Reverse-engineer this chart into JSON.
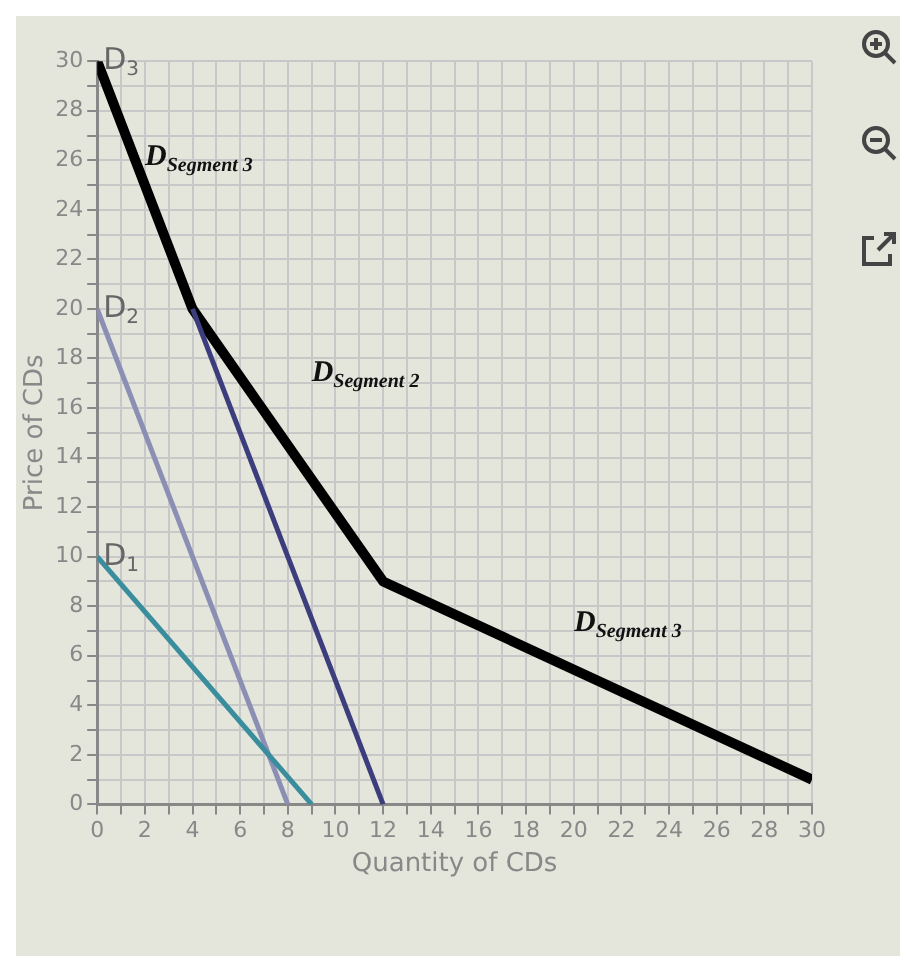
{
  "chart_data": {
    "type": "line",
    "xlabel": "Quantity of CDs",
    "ylabel": "Price of CDs",
    "xlim": [
      0,
      30
    ],
    "ylim": [
      0,
      30
    ],
    "xticks": [
      0,
      {
        "value": 1,
        "label": null
      },
      2,
      {
        "value": 3,
        "label": null
      },
      4,
      {
        "value": 5,
        "label": null
      },
      6,
      {
        "value": 7,
        "label": null
      },
      8,
      {
        "value": 9,
        "label": null
      },
      10,
      {
        "value": 11,
        "label": null
      },
      12,
      {
        "value": 13,
        "label": null
      },
      14,
      {
        "value": 15,
        "label": null
      },
      16,
      {
        "value": 17,
        "label": null
      },
      18,
      {
        "value": 19,
        "label": null
      },
      20,
      {
        "value": 21,
        "label": null
      },
      22,
      {
        "value": 23,
        "label": null
      },
      24,
      {
        "value": 25,
        "label": null
      },
      26,
      {
        "value": 27,
        "label": null
      },
      28,
      {
        "value": 29,
        "label": null
      },
      30
    ],
    "yticks": [
      0,
      {
        "value": 1,
        "label": null
      },
      2,
      {
        "value": 3,
        "label": null
      },
      4,
      {
        "value": 5,
        "label": null
      },
      6,
      {
        "value": 7,
        "label": null
      },
      8,
      {
        "value": 9,
        "label": null
      },
      10,
      {
        "value": 11,
        "label": null
      },
      12,
      {
        "value": 13,
        "label": null
      },
      14,
      {
        "value": 15,
        "label": null
      },
      16,
      {
        "value": 17,
        "label": null
      },
      18,
      {
        "value": 19,
        "label": null
      },
      20,
      {
        "value": 21,
        "label": null
      },
      22,
      {
        "value": 23,
        "label": null
      },
      24,
      {
        "value": 25,
        "label": null
      },
      26,
      {
        "value": 27,
        "label": null
      },
      28,
      {
        "value": 29,
        "label": null
      },
      30
    ],
    "grid": true,
    "legend": false,
    "marker": "none",
    "line_style": "solid",
    "series": [
      {
        "name": "D$_{1}$",
        "color": "#3a8d9c",
        "x": [
          0,
          9
        ],
        "values": [
          10,
          0
        ]
      },
      {
        "name": "D$_{2}$",
        "color": "#8c8fb4",
        "x": [
          0,
          8
        ],
        "values": [
          20,
          0
        ]
      },
      {
        "color": "#3b3d7c",
        "x": [
          4,
          12
        ],
        "values": [
          20,
          0
        ]
      },
      {
        "name": "D$_{3}$",
        "color": "#000000",
        "x": [
          0,
          4,
          12,
          30
        ],
        "values": [
          30,
          20,
          9,
          1
        ]
      }
    ],
    "annotations": [
      "D$_{Segment 3}$",
      "D$_{Segment 2}$",
      "D$_{Segment 3}$"
    ]
  }
}
